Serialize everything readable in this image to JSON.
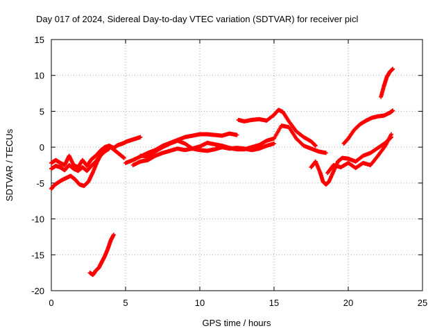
{
  "chart_data": {
    "type": "scatter",
    "title": "Day 017 of 2024, Sidereal Day-to-day VTEC variation (SDTVAR) for receiver picl",
    "xlabel": "GPS time / hours",
    "ylabel": "SDTVAR / TECUs",
    "xlim": [
      0,
      25
    ],
    "ylim": [
      -20,
      15
    ],
    "xticks": [
      0,
      5,
      10,
      15,
      20,
      25
    ],
    "yticks": [
      15,
      10,
      5,
      0,
      -5,
      -10,
      -15,
      -20
    ],
    "xtick_labels": [
      "0",
      "5",
      "10",
      "15",
      "20",
      "25"
    ],
    "ytick_labels": [
      "15",
      "10",
      "5",
      "0",
      "-5",
      "-10",
      "-15",
      "-20"
    ],
    "grid": true,
    "marker": "+",
    "color": "#ff0000",
    "series": [
      {
        "name": "trace-1",
        "x": [
          0,
          0.3,
          0.6,
          0.9,
          1.2,
          1.5,
          1.8,
          2.1,
          2.4,
          2.7,
          3.0,
          3.3,
          3.6,
          3.9,
          4.2,
          4.5,
          4.8,
          5.1,
          5.4,
          5.7,
          6.0
        ],
        "y": [
          -2.2,
          -1.8,
          -2.2,
          -2.5,
          -1.2,
          -2.5,
          -2.8,
          -1.8,
          -2.6,
          -1.7,
          -1.2,
          -0.5,
          0,
          0.2,
          -0.1,
          0.3,
          0.5,
          0.8,
          1.0,
          1.2,
          1.4
        ]
      },
      {
        "name": "trace-2",
        "x": [
          0,
          0.3,
          0.6,
          0.9,
          1.2,
          1.5,
          1.8,
          2.1,
          2.4,
          2.7,
          3.0,
          3.3,
          3.6,
          3.9
        ],
        "y": [
          -3.0,
          -2.6,
          -2.8,
          -3.2,
          -2.5,
          -3.0,
          -3.3,
          -2.8,
          -3.3,
          -2.6,
          -2.0,
          -1.2,
          -0.6,
          -0.2
        ]
      },
      {
        "name": "trace-3",
        "x": [
          0,
          0.2,
          0.4,
          0.7,
          1.0,
          1.3,
          1.6,
          1.9,
          2.2,
          2.5,
          2.8,
          3.1,
          3.4,
          3.7,
          4.0,
          4.3,
          4.6,
          4.9
        ],
        "y": [
          -5.8,
          -5.3,
          -5.0,
          -4.6,
          -4.3,
          -4.0,
          -4.5,
          -5.2,
          -5.4,
          -4.8,
          -3.5,
          -2.0,
          -0.8,
          -0.2,
          0,
          -0.5,
          -1.0,
          -1.5
        ]
      },
      {
        "name": "trace-4",
        "x": [
          2.6,
          2.8,
          3.0,
          3.2,
          3.4,
          3.6,
          3.8,
          4.0,
          4.2
        ],
        "y": [
          -17.5,
          -17.8,
          -17.2,
          -16.8,
          -16.0,
          -15.2,
          -14.2,
          -13.0,
          -12.2
        ]
      },
      {
        "name": "trace-5",
        "x": [
          5.0,
          5.5,
          6.0,
          6.5,
          7.0,
          7.5,
          8.0,
          8.5,
          9.0,
          9.5,
          10.0,
          10.5,
          11.0,
          11.5,
          12.0,
          12.5
        ],
        "y": [
          -2.2,
          -1.8,
          -1.3,
          -0.8,
          -0.4,
          0.2,
          0.6,
          1.0,
          1.4,
          1.6,
          1.8,
          1.8,
          1.7,
          1.6,
          1.9,
          1.7
        ]
      },
      {
        "name": "trace-6",
        "x": [
          5.5,
          6.0,
          6.5,
          7.0,
          7.5,
          8.0,
          8.5,
          9.0,
          9.5,
          10.0,
          10.5,
          11.0,
          11.5,
          12.0,
          12.5,
          13.0,
          13.5,
          14.0,
          14.5,
          15.0
        ],
        "y": [
          -2.5,
          -2.0,
          -1.8,
          -1.2,
          -0.8,
          -0.5,
          -0.2,
          -0.4,
          -0.2,
          -0.4,
          -0.5,
          -0.3,
          0,
          -0.2,
          -0.1,
          -0.2,
          -0.4,
          -0.2,
          0.2,
          0.5
        ]
      },
      {
        "name": "trace-7",
        "x": [
          6.0,
          6.5,
          7.0,
          7.5,
          8.0,
          8.5,
          9.0,
          9.5,
          10.0,
          10.5,
          11.0,
          11.5,
          12.0,
          12.5,
          13.0,
          13.5,
          14.0,
          14.5,
          15.0,
          15.5,
          16.0,
          16.5,
          17.0,
          17.5,
          18.0,
          18.5
        ],
        "y": [
          -1.2,
          -1.3,
          -0.6,
          0,
          0.5,
          0.9,
          0.5,
          -0.2,
          0.1,
          0.6,
          0.4,
          0.2,
          -0.1,
          -0.3,
          -0.3,
          0,
          0.3,
          0.9,
          1.2,
          3.0,
          2.8,
          1.2,
          0.2,
          -0.2,
          -0.6,
          -0.8
        ]
      },
      {
        "name": "trace-8",
        "x": [
          12.6,
          13.0,
          13.5,
          14.0,
          14.5,
          15.0,
          15.3,
          15.6,
          16.0,
          16.5,
          17.0,
          17.5,
          17.8
        ],
        "y": [
          3.8,
          3.6,
          3.8,
          3.9,
          3.7,
          4.5,
          5.2,
          4.9,
          3.6,
          2.2,
          1.4,
          0.8,
          0.2
        ]
      },
      {
        "name": "trace-9",
        "x": [
          17.5,
          17.8,
          18.1,
          18.3,
          18.5,
          18.7,
          19.0,
          19.3,
          19.6,
          20.0,
          20.5,
          21.0,
          21.5,
          22.0,
          22.5,
          22.9
        ],
        "y": [
          -2.8,
          -2.0,
          -3.5,
          -4.8,
          -5.2,
          -4.8,
          -3.4,
          -2.0,
          -1.5,
          -1.6,
          -2.0,
          -1.2,
          -0.8,
          -0.1,
          0.6,
          1.4
        ]
      },
      {
        "name": "trace-10",
        "x": [
          18.6,
          19.0,
          19.5,
          20.0,
          20.5,
          21.0,
          21.5,
          22.0,
          22.5,
          22.9
        ],
        "y": [
          -3.6,
          -2.5,
          -2.8,
          -2.2,
          -2.9,
          -2.2,
          -2.5,
          -1.2,
          0.2,
          1.8
        ]
      },
      {
        "name": "trace-11",
        "x": [
          19.7,
          20.0,
          20.4,
          20.8,
          21.2,
          21.6,
          22.0,
          22.4,
          22.8,
          23.0
        ],
        "y": [
          0.5,
          1.2,
          2.4,
          3.2,
          3.7,
          4.1,
          4.3,
          4.4,
          4.8,
          5.1
        ]
      },
      {
        "name": "trace-12",
        "x": [
          22.2,
          22.4,
          22.6,
          22.8,
          23.0
        ],
        "y": [
          7.0,
          8.5,
          9.8,
          10.5,
          10.9
        ]
      }
    ]
  }
}
